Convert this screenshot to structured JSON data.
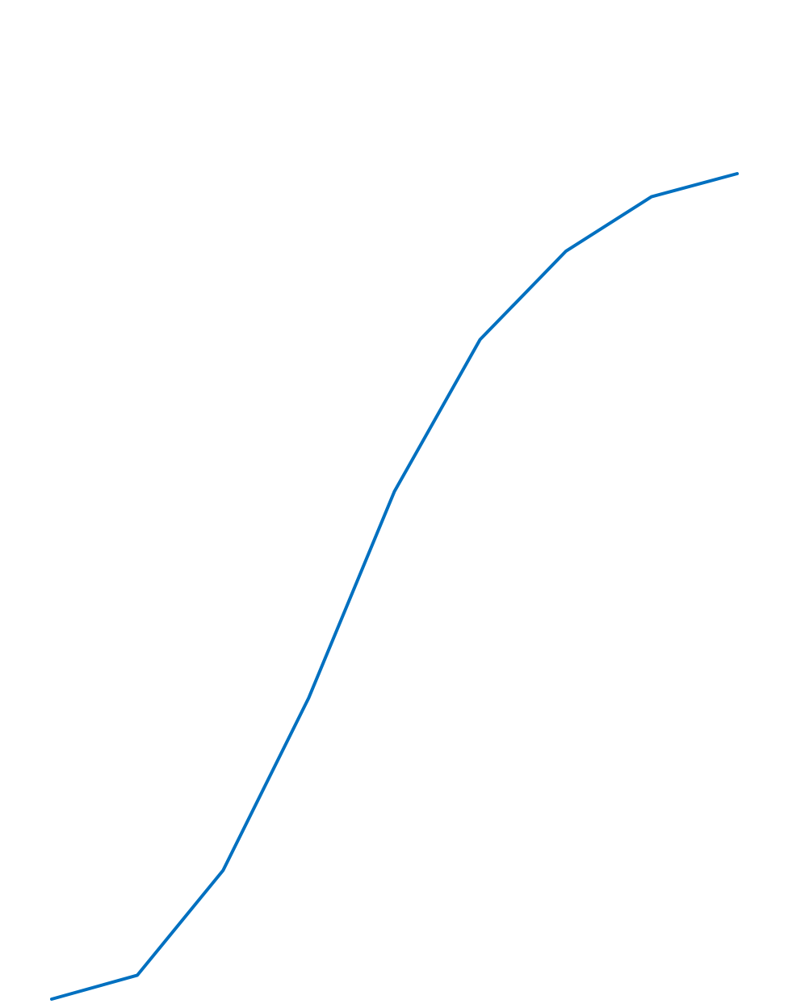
{
  "chart_data": {
    "type": "line",
    "categories": [
      null,
      null,
      null,
      null,
      null,
      null,
      null,
      null,
      null
    ],
    "values": [
      0,
      2.9,
      15.6,
      36.5,
      61.5,
      79.9,
      90.6,
      97.2,
      100
    ],
    "color": "#0070c0",
    "ylim": [
      0,
      100
    ]
  }
}
